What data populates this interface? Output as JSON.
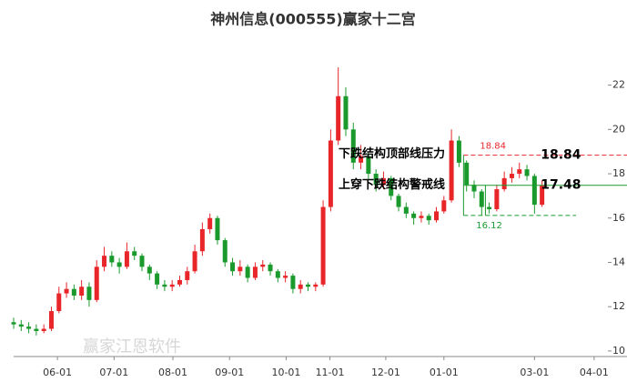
{
  "chart_data": {
    "type": "candlestick",
    "title": "神州信息(000555)赢家十二宫",
    "watermark": "赢家江恩软件",
    "ylim": [
      9.75,
      24.2
    ],
    "yticks": [
      10,
      12,
      14,
      16,
      18,
      20,
      22
    ],
    "xlim": [
      0,
      78
    ],
    "xticks": [
      {
        "value": 5.8,
        "label": "06-01"
      },
      {
        "value": 13.3,
        "label": "07-01"
      },
      {
        "value": 21.1,
        "label": "08-01"
      },
      {
        "value": 28.6,
        "label": "09-01"
      },
      {
        "value": 36.1,
        "label": "10-01"
      },
      {
        "value": 41.9,
        "label": "11-01"
      },
      {
        "value": 49.3,
        "label": "12-01"
      },
      {
        "value": 57.0,
        "label": "01-01"
      },
      {
        "value": 69.0,
        "label": "03-01"
      },
      {
        "value": 76.9,
        "label": "04-01"
      }
    ],
    "up_color": "#e8262a",
    "down_color": "#1a9a2c",
    "open": [
      11.3,
      11.2,
      11.1,
      11.0,
      10.9,
      11.0,
      11.8,
      12.6,
      12.8,
      12.5,
      12.9,
      12.3,
      13.8,
      14.3,
      14.0,
      13.8,
      14.5,
      14.3,
      13.8,
      13.5,
      13.0,
      12.9,
      13.0,
      13.2,
      13.6,
      14.5,
      15.5,
      16.0,
      15.0,
      14.0,
      13.6,
      13.8,
      13.3,
      13.8,
      13.9,
      13.6,
      13.3,
      13.4,
      12.8,
      13.0,
      12.9,
      13.0,
      16.5,
      19.5,
      21.5,
      20.0,
      18.5,
      18.8,
      18.0,
      17.5,
      17.8,
      17.0,
      16.5,
      16.2,
      16.0,
      16.1,
      15.9,
      16.3,
      16.8,
      19.5,
      18.5,
      17.5,
      17.2,
      16.5,
      16.4,
      17.3,
      17.8,
      18.0,
      18.2,
      17.9,
      16.6
    ],
    "high": [
      11.5,
      11.4,
      11.3,
      11.2,
      11.2,
      12.0,
      12.9,
      13.1,
      13.0,
      13.2,
      13.1,
      14.1,
      14.7,
      14.5,
      14.2,
      14.9,
      14.7,
      14.4,
      13.9,
      13.6,
      13.2,
      13.2,
      13.4,
      13.8,
      14.8,
      15.8,
      16.2,
      16.1,
      15.1,
      14.2,
      14.1,
      13.9,
      14.0,
      14.1,
      14.0,
      13.7,
      13.6,
      13.5,
      13.2,
      13.1,
      13.1,
      16.8,
      20.0,
      22.8,
      21.9,
      20.3,
      19.3,
      19.0,
      18.2,
      18.1,
      17.9,
      17.1,
      16.7,
      16.3,
      16.3,
      16.2,
      16.5,
      17.0,
      20.0,
      19.7,
      18.6,
      17.7,
      17.3,
      16.7,
      17.5,
      18.1,
      18.3,
      18.5,
      18.4,
      18.0,
      17.7
    ],
    "low": [
      11.0,
      10.9,
      10.8,
      10.7,
      10.8,
      10.9,
      11.7,
      12.4,
      12.3,
      12.3,
      12.0,
      12.2,
      13.6,
      13.8,
      13.5,
      13.7,
      14.1,
      13.6,
      13.2,
      12.8,
      12.7,
      12.7,
      12.9,
      13.0,
      13.5,
      14.3,
      15.3,
      14.8,
      13.8,
      13.4,
      13.4,
      13.1,
      13.2,
      13.6,
      13.4,
      13.1,
      13.1,
      12.6,
      12.6,
      12.7,
      12.7,
      12.9,
      16.3,
      19.3,
      19.7,
      18.2,
      18.2,
      17.7,
      17.2,
      17.3,
      16.8,
      16.3,
      16.0,
      15.7,
      15.8,
      15.7,
      15.8,
      16.2,
      16.7,
      18.3,
      17.2,
      16.9,
      16.12,
      16.2,
      16.3,
      17.2,
      17.6,
      17.8,
      17.7,
      16.2,
      16.5
    ],
    "close": [
      11.2,
      11.1,
      11.0,
      10.9,
      11.0,
      11.8,
      12.6,
      12.8,
      12.5,
      12.9,
      12.3,
      13.8,
      14.3,
      14.0,
      13.8,
      14.5,
      14.3,
      13.8,
      13.5,
      13.0,
      12.9,
      13.0,
      13.2,
      13.6,
      14.5,
      15.5,
      16.0,
      15.0,
      14.0,
      13.6,
      13.8,
      13.3,
      13.8,
      13.9,
      13.6,
      13.3,
      13.4,
      12.8,
      13.0,
      12.9,
      13.0,
      16.5,
      19.5,
      21.5,
      20.0,
      18.5,
      18.8,
      18.0,
      17.5,
      17.8,
      17.0,
      16.5,
      16.2,
      16.0,
      16.1,
      15.9,
      16.3,
      16.8,
      19.5,
      18.5,
      17.5,
      17.2,
      16.5,
      16.4,
      17.3,
      17.8,
      18.0,
      18.2,
      17.9,
      16.6,
      17.48
    ],
    "levels": [
      {
        "name": "下跌结构顶部线压力",
        "value": 18.84,
        "color": "#e8262a"
      },
      {
        "name": "上穿下跌结构警戒线",
        "value": 17.48,
        "color": "#1a9a2c"
      },
      {
        "value": 16.12,
        "color": "#1a9a2c"
      }
    ]
  }
}
